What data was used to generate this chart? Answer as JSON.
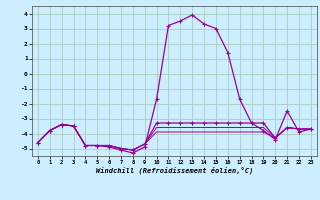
{
  "xlabel": "Windchill (Refroidissement éolien,°C)",
  "bg_color": "#cceeff",
  "grid_color": "#aaccbb",
  "line_color": "#990099",
  "xlim": [
    -0.5,
    23.5
  ],
  "ylim": [
    -5.5,
    4.5
  ],
  "yticks": [
    -5,
    -4,
    -3,
    -2,
    -1,
    0,
    1,
    2,
    3,
    4
  ],
  "xticks": [
    0,
    1,
    2,
    3,
    4,
    5,
    6,
    7,
    8,
    9,
    10,
    11,
    12,
    13,
    14,
    15,
    16,
    17,
    18,
    19,
    20,
    21,
    22,
    23
  ],
  "series": [
    {
      "x": [
        0,
        1,
        2,
        3,
        4,
        5,
        6,
        7,
        8,
        9,
        10,
        11,
        12,
        13,
        14,
        15,
        16,
        17,
        18,
        19,
        20,
        21,
        22,
        23
      ],
      "y": [
        -4.6,
        -3.8,
        -3.4,
        -3.5,
        -4.8,
        -4.8,
        -4.9,
        -5.1,
        -5.3,
        -4.9,
        -1.7,
        3.2,
        3.5,
        3.9,
        3.3,
        3.0,
        1.4,
        -1.7,
        -3.3,
        -3.8,
        -4.4,
        -2.5,
        -3.9,
        -3.7
      ],
      "marker": true,
      "lw": 0.9
    },
    {
      "x": [
        0,
        1,
        2,
        3,
        4,
        5,
        6,
        7,
        8,
        9,
        10,
        11,
        12,
        13,
        14,
        15,
        16,
        17,
        18,
        19,
        20,
        21,
        22,
        23
      ],
      "y": [
        -4.6,
        -3.8,
        -3.4,
        -3.5,
        -4.8,
        -4.8,
        -4.8,
        -5.0,
        -5.1,
        -4.7,
        -3.3,
        -3.3,
        -3.3,
        -3.3,
        -3.3,
        -3.3,
        -3.3,
        -3.3,
        -3.3,
        -3.3,
        -4.3,
        -3.6,
        -3.7,
        -3.7
      ],
      "marker": true,
      "lw": 0.9
    },
    {
      "x": [
        0,
        1,
        2,
        3,
        4,
        5,
        6,
        7,
        8,
        9,
        10,
        11,
        12,
        13,
        14,
        15,
        16,
        17,
        18,
        19,
        20,
        21,
        22,
        23
      ],
      "y": [
        -4.6,
        -3.8,
        -3.4,
        -3.5,
        -4.8,
        -4.8,
        -4.8,
        -5.0,
        -5.1,
        -4.7,
        -3.6,
        -3.6,
        -3.6,
        -3.6,
        -3.6,
        -3.6,
        -3.6,
        -3.6,
        -3.6,
        -3.6,
        -4.3,
        -3.6,
        -3.7,
        -3.7
      ],
      "marker": false,
      "lw": 0.7
    },
    {
      "x": [
        0,
        1,
        2,
        3,
        4,
        5,
        6,
        7,
        8,
        9,
        10,
        11,
        12,
        13,
        14,
        15,
        16,
        17,
        18,
        19,
        20,
        21,
        22,
        23
      ],
      "y": [
        -4.6,
        -3.8,
        -3.4,
        -3.5,
        -4.8,
        -4.8,
        -4.8,
        -5.0,
        -5.1,
        -4.7,
        -3.9,
        -3.9,
        -3.9,
        -3.9,
        -3.9,
        -3.9,
        -3.9,
        -3.9,
        -3.9,
        -3.9,
        -4.3,
        -3.6,
        -3.7,
        -3.7
      ],
      "marker": false,
      "lw": 0.7
    }
  ]
}
